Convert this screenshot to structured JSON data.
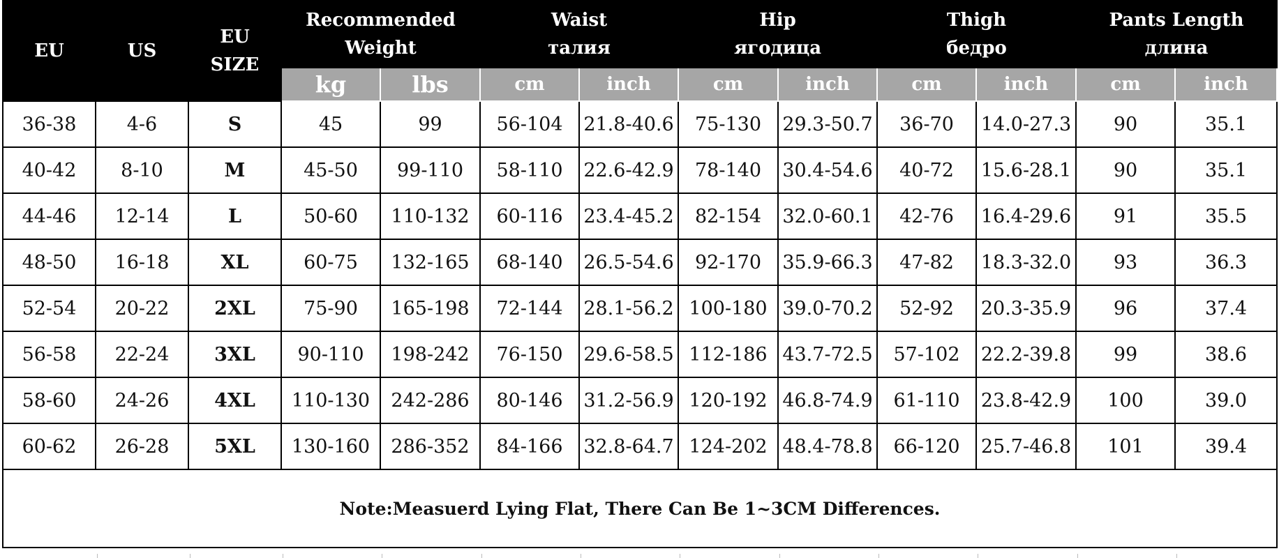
{
  "header": {
    "eu": "EU",
    "us": "US",
    "eu_size_line1": "EU",
    "eu_size_line2": "SIZE",
    "weight_line1": "Recommended",
    "weight_line2": "Weight",
    "waist_line1": "Waist",
    "waist_line2": "талия",
    "hip_line1": "Hip",
    "hip_line2": "ягодица",
    "thigh_line1": "Thigh",
    "thigh_line2": "бедро",
    "length_line1": "Pants Length",
    "length_line2": "длина"
  },
  "units": [
    "kg",
    "lbs",
    "cm",
    "inch",
    "cm",
    "inch",
    "cm",
    "inch",
    "cm",
    "inch"
  ],
  "rows": [
    [
      "36-38",
      "4-6",
      "S",
      "45",
      "99",
      "56-104",
      "21.8-40.6",
      "75-130",
      "29.3-50.7",
      "36-70",
      "14.0-27.3",
      "90",
      "35.1"
    ],
    [
      "40-42",
      "8-10",
      "M",
      "45-50",
      "99-110",
      "58-110",
      "22.6-42.9",
      "78-140",
      "30.4-54.6",
      "40-72",
      "15.6-28.1",
      "90",
      "35.1"
    ],
    [
      "44-46",
      "12-14",
      "L",
      "50-60",
      "110-132",
      "60-116",
      "23.4-45.2",
      "82-154",
      "32.0-60.1",
      "42-76",
      "16.4-29.6",
      "91",
      "35.5"
    ],
    [
      "48-50",
      "16-18",
      "XL",
      "60-75",
      "132-165",
      "68-140",
      "26.5-54.6",
      "92-170",
      "35.9-66.3",
      "47-82",
      "18.3-32.0",
      "93",
      "36.3"
    ],
    [
      "52-54",
      "20-22",
      "2XL",
      "75-90",
      "165-198",
      "72-144",
      "28.1-56.2",
      "100-180",
      "39.0-70.2",
      "52-92",
      "20.3-35.9",
      "96",
      "37.4"
    ],
    [
      "56-58",
      "22-24",
      "3XL",
      "90-110",
      "198-242",
      "76-150",
      "29.6-58.5",
      "112-186",
      "43.7-72.5",
      "57-102",
      "22.2-39.8",
      "99",
      "38.6"
    ],
    [
      "58-60",
      "24-26",
      "4XL",
      "110-130",
      "242-286",
      "80-146",
      "31.2-56.9",
      "120-192",
      "46.8-74.9",
      "61-110",
      "23.8-42.9",
      "100",
      "39.0"
    ],
    [
      "60-62",
      "26-28",
      "5XL",
      "130-160",
      "286-352",
      "84-166",
      "32.8-64.7",
      "124-202",
      "48.4-78.8",
      "66-120",
      "25.7-46.8",
      "101",
      "39.4"
    ]
  ],
  "note": "Note:Measuerd Lying Flat, There Can Be 1~3CM Differences.",
  "colors": {
    "header_bg": "#000000",
    "unit_bg": "#a6a6a6",
    "accent": "#3aa33a"
  }
}
